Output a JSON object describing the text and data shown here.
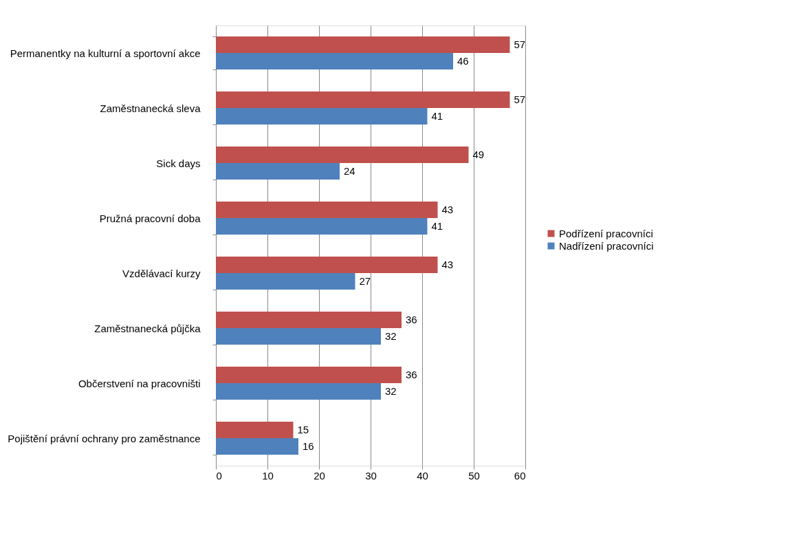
{
  "chart_data": {
    "type": "bar",
    "orientation": "horizontal",
    "categories": [
      "Permanentky na kulturní a sportovní akce",
      "Zaměstnanecká sleva",
      "Sick days",
      "Pružná pracovní doba",
      "Vzdělávací kurzy",
      "Zaměstnanecká půjčka",
      "Občerstvení na pracovništi",
      "Pojištění právní ochrany pro zaměstnance"
    ],
    "series": [
      {
        "name": "Podřízení pracovníci",
        "color": "#c0504d",
        "values": [
          57,
          57,
          49,
          43,
          43,
          36,
          36,
          15
        ]
      },
      {
        "name": "Nadřízení pracovníci",
        "color": "#4f81bd",
        "values": [
          46,
          41,
          24,
          41,
          27,
          32,
          32,
          16
        ]
      }
    ],
    "xlim": [
      0,
      60
    ],
    "xticks": [
      0,
      10,
      20,
      30,
      40,
      50,
      60
    ],
    "grid": "x",
    "data_labels": true,
    "legend": "right"
  }
}
